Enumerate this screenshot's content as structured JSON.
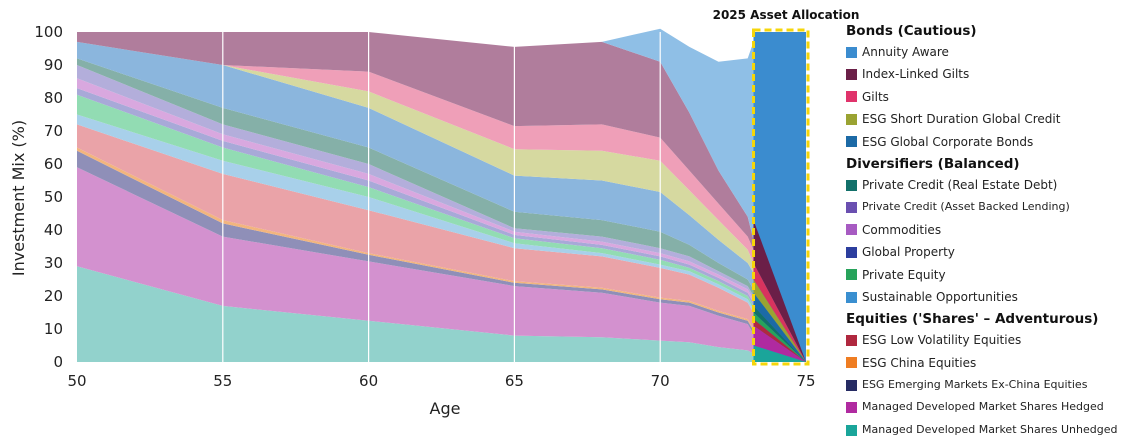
{
  "colors": {
    "background": "#ffffff",
    "grid": "#ffffff",
    "highlight_box": "#f5d60a"
  },
  "chart_data": {
    "type": "area",
    "stacked": true,
    "xlabel": "Age",
    "ylabel": "Investment Mix (%)",
    "xlim": [
      50,
      75
    ],
    "ylim": [
      0,
      100
    ],
    "x_ticks": [
      50,
      55,
      60,
      65,
      70,
      75
    ],
    "y_ticks": [
      0,
      10,
      20,
      30,
      40,
      50,
      60,
      70,
      80,
      90,
      100
    ],
    "grid": "vertical",
    "legend_position": "right",
    "x": [
      50,
      55,
      60,
      65,
      68,
      70,
      71,
      72,
      73,
      73.2,
      75
    ],
    "highlight": {
      "label": "2025 Asset Allocation",
      "x_start": 73.2,
      "x_end": 75
    },
    "groups": [
      {
        "name": "Bonds (Cautious)",
        "series": [
          0,
          1,
          2,
          3,
          4
        ]
      },
      {
        "name": "Diversifiers (Balanced)",
        "series": [
          5,
          6,
          7,
          8,
          9,
          10
        ]
      },
      {
        "name": "Equities ('Shares' – Adventurous)",
        "series": [
          11,
          12,
          13,
          14,
          15
        ]
      }
    ],
    "stack_order": [
      15,
      14,
      13,
      12,
      11,
      10,
      9,
      8,
      7,
      6,
      5,
      4,
      3,
      2,
      1,
      0
    ],
    "series": [
      {
        "name": "Annuity Aware",
        "color": "#8fbfe6",
        "values": [
          0,
          0,
          0,
          0,
          0,
          10,
          20,
          33,
          48,
          60,
          0
        ]
      },
      {
        "name": "Index-Linked Gilts",
        "color": "#b07d9c",
        "values": [
          3,
          10,
          12,
          24,
          25,
          23,
          17.5,
          10,
          6,
          3,
          0
        ]
      },
      {
        "name": "Gilts",
        "color": "#ef9fb8",
        "values": [
          0,
          0,
          6,
          7,
          8,
          7,
          6,
          5,
          4,
          4,
          0
        ]
      },
      {
        "name": "ESG Short Duration Global Credit",
        "color": "#d6d9a0",
        "values": [
          0,
          0,
          5,
          8,
          9,
          9.5,
          7.5,
          6,
          4,
          3,
          0
        ]
      },
      {
        "name": "ESG Global Corporate Bonds",
        "color": "#8bb6dd",
        "values": [
          5,
          13,
          12,
          11,
          12,
          12,
          9,
          7,
          5,
          5,
          0
        ]
      },
      {
        "name": "Private Credit (Real Estate Debt)",
        "color": "#85b0a8",
        "values": [
          2,
          5,
          5,
          5,
          5,
          5,
          3.5,
          2.5,
          2,
          2,
          0
        ]
      },
      {
        "name": "Private Credit (Asset Backed Lending)",
        "color": "#b3aedb",
        "values": [
          4,
          3,
          3,
          1,
          1.5,
          1.5,
          1.5,
          1,
          1,
          1,
          0
        ]
      },
      {
        "name": "Commodities",
        "color": "#d9a8df",
        "values": [
          3,
          2,
          2,
          1,
          1,
          1,
          1,
          1,
          1,
          1,
          0
        ]
      },
      {
        "name": "Global Property",
        "color": "#a8a9d8",
        "values": [
          2,
          2,
          2,
          1,
          1,
          1,
          1,
          1,
          1,
          1,
          0
        ]
      },
      {
        "name": "Private Equity",
        "color": "#92dcb3",
        "values": [
          6,
          4,
          3,
          1.5,
          1.5,
          1.5,
          1,
          1,
          1,
          1,
          0
        ]
      },
      {
        "name": "Sustainable Opportunities",
        "color": "#a8d0ea",
        "values": [
          3,
          4,
          4,
          1.5,
          1,
          1,
          1,
          1,
          1,
          1,
          0
        ]
      },
      {
        "name": "ESG Low Volatility Equities",
        "color": "#eaa3a8",
        "values": [
          7,
          14,
          13,
          10,
          9.5,
          9,
          8,
          7,
          5,
          5,
          0
        ]
      },
      {
        "name": "ESG China Equities",
        "color": "#f2b57e",
        "values": [
          1,
          1,
          0.5,
          0.5,
          0.5,
          0.5,
          0.5,
          0.5,
          0.5,
          0.5,
          0
        ]
      },
      {
        "name": "ESG Emerging Markets Ex-China Equities",
        "color": "#8f8fb8",
        "values": [
          5,
          4,
          2,
          1,
          1,
          1,
          1,
          1,
          1,
          1,
          0
        ]
      },
      {
        "name": "Managed Developed Market Shares Hedged",
        "color": "#d391cf",
        "values": [
          30,
          21,
          18,
          15,
          13.5,
          11.5,
          11,
          9.5,
          8,
          6,
          0
        ]
      },
      {
        "name": "Managed Developed Market Shares Unhedged",
        "color": "#92d2cc",
        "values": [
          29,
          17,
          12.5,
          8,
          7.5,
          6.5,
          6,
          4.5,
          3.5,
          2.5,
          0
        ]
      }
    ],
    "allocation_2025": {
      "x_start": 73.2,
      "x_end": 75,
      "color": "#3b8ccf",
      "wedges": [
        {
          "name": "Index-Linked Gilts",
          "color": "#6b1f48",
          "from": 30,
          "to": 43
        },
        {
          "name": "Gilts",
          "color": "#d8335e",
          "from": 25,
          "to": 30
        },
        {
          "name": "ESG Short Duration Global Credit",
          "color": "#9aa332",
          "from": 21,
          "to": 25
        },
        {
          "name": "ESG Global Corporate Bonds",
          "color": "#1c6aa6",
          "from": 17,
          "to": 21
        },
        {
          "name": "Private Credit (Real Estate Debt)",
          "color": "#12706a",
          "from": 15,
          "to": 17
        },
        {
          "name": "Private Equity",
          "color": "#27a35b",
          "from": 13,
          "to": 15
        },
        {
          "name": "ESG Low Volatility Equities",
          "color": "#b0283f",
          "from": 11,
          "to": 13
        },
        {
          "name": "Managed Developed Market Shares Hedged",
          "color": "#b02aa0",
          "from": 5,
          "to": 11
        },
        {
          "name": "Managed Developed Market Shares Unhedged",
          "color": "#1aa59a",
          "from": 0,
          "to": 5
        }
      ]
    }
  },
  "legend": {
    "groups": [
      {
        "title": "Bonds (Cautious)",
        "items": [
          {
            "label": "Annuity Aware",
            "color": "#3b8ccf"
          },
          {
            "label": "Index-Linked Gilts",
            "color": "#6b1f48"
          },
          {
            "label": "Gilts",
            "color": "#e0336b"
          },
          {
            "label": "ESG Short Duration Global Credit",
            "color": "#9aa332"
          },
          {
            "label": "ESG Global Corporate Bonds",
            "color": "#1c6aa6"
          }
        ]
      },
      {
        "title": "Diversifiers (Balanced)",
        "items": [
          {
            "label": "Private Credit (Real Estate Debt)",
            "color": "#12706a"
          },
          {
            "label": "Private Credit (Asset Backed Lending)",
            "color": "#6a4fb0"
          },
          {
            "label": "Commodities",
            "color": "#a75bc2"
          },
          {
            "label": "Global Property",
            "color": "#2c3e9e"
          },
          {
            "label": "Private Equity",
            "color": "#27a35b"
          },
          {
            "label": "Sustainable Opportunities",
            "color": "#3a8fd0"
          }
        ]
      },
      {
        "title": "Equities ('Shares' – Adventurous)",
        "items": [
          {
            "label": "ESG Low Volatility Equities",
            "color": "#b0283f"
          },
          {
            "label": "ESG China Equities",
            "color": "#ef7d22"
          },
          {
            "label": "ESG Emerging Markets Ex-China Equities",
            "color": "#262b63"
          },
          {
            "label": "Managed Developed Market Shares Hedged",
            "color": "#b02aa0"
          },
          {
            "label": "Managed Developed Market Shares Unhedged",
            "color": "#1aa59a"
          }
        ]
      }
    ]
  }
}
